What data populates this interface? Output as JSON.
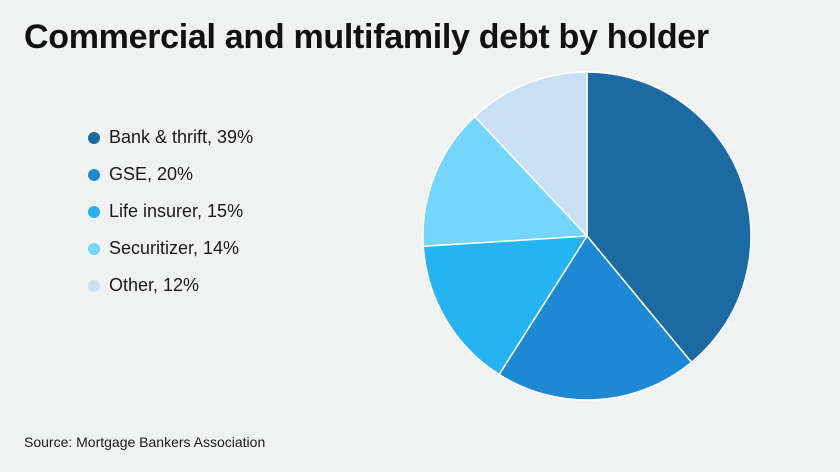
{
  "chart_data": {
    "type": "pie",
    "title": "Commercial and multifamily debt by holder",
    "source": "Source: Mortgage Bankers Association",
    "legend_position": "left",
    "slices": [
      {
        "label": "Bank & thrift",
        "value": 39,
        "legend": "Bank & thrift, 39%",
        "color": "#1b6aa3"
      },
      {
        "label": "GSE",
        "value": 20,
        "legend": "GSE, 20%",
        "color": "#1d88d3"
      },
      {
        "label": "Life insurer",
        "value": 15,
        "legend": "Life insurer, 15%",
        "color": "#26b3f2"
      },
      {
        "label": "Securitizer",
        "value": 14,
        "legend": "Securitizer, 14%",
        "color": "#74d5fd"
      },
      {
        "label": "Other",
        "value": 12,
        "legend": "Other, 12%",
        "color": "#c9dff6"
      }
    ]
  }
}
